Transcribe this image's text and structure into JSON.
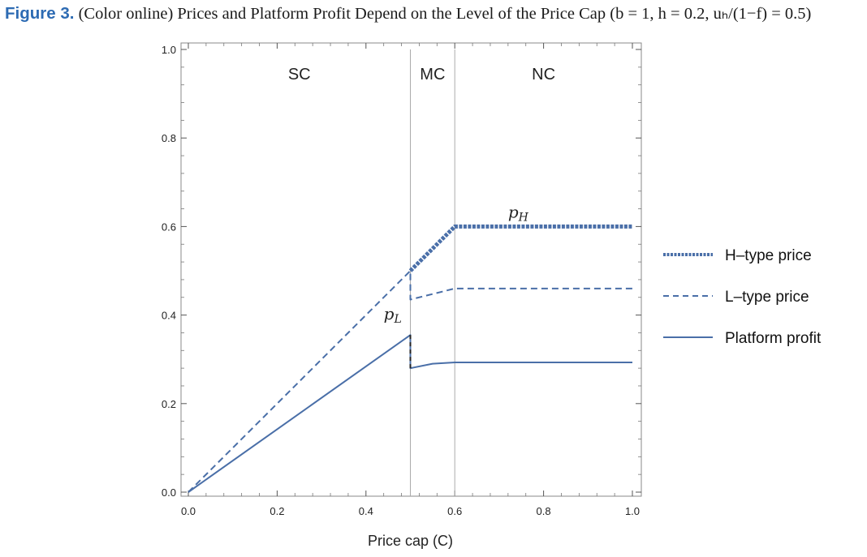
{
  "caption": {
    "figure_label": "Figure 3.",
    "text": "(Color online) Prices and Platform Profit Depend on the Level of the Price Cap",
    "params": "(b = 1, h = 0.2, uₕ/(1−f) = 0.5)"
  },
  "colors": {
    "series": "#4a6fa8",
    "caption_label": "#2d6bb3",
    "frame": "#888888",
    "region_line": "#aaaaaa"
  },
  "chart_data": {
    "type": "line",
    "xlabel": "Price cap (C)",
    "ylabel": "",
    "xlim": [
      0,
      1
    ],
    "ylim": [
      0,
      1
    ],
    "x_ticks": [
      "0.0",
      "0.2",
      "0.4",
      "0.6",
      "0.8",
      "1.0"
    ],
    "y_ticks": [
      "0.0",
      "0.2",
      "0.4",
      "0.6",
      "0.8",
      "1.0"
    ],
    "grid": false,
    "legend_position": "right",
    "regions": [
      {
        "label": "SC",
        "from": 0.0,
        "to": 0.5
      },
      {
        "label": "MC",
        "from": 0.5,
        "to": 0.6
      },
      {
        "label": "NC",
        "from": 0.6,
        "to": 1.0
      }
    ],
    "region_boundaries": [
      0.5,
      0.6
    ],
    "annotations": [
      {
        "text": "p",
        "subscript": "H",
        "x": 0.72,
        "y": 0.62
      },
      {
        "text": "p",
        "subscript": "L",
        "x": 0.44,
        "y": 0.39
      }
    ],
    "series": [
      {
        "name": "H–type price",
        "style": "thick-dotted",
        "points": [
          [
            0.5,
            0.5
          ],
          [
            0.6,
            0.6
          ],
          [
            1.0,
            0.6
          ]
        ]
      },
      {
        "name": "L–type price",
        "style": "dashed",
        "points": [
          [
            0.0,
            0.0
          ],
          [
            0.5,
            0.5
          ],
          [
            0.5,
            0.435
          ],
          [
            0.6,
            0.46
          ],
          [
            1.0,
            0.46
          ]
        ]
      },
      {
        "name": "Platform profit",
        "style": "solid",
        "points": [
          [
            0.0,
            0.0
          ],
          [
            0.5,
            0.355
          ],
          [
            0.5,
            0.28
          ],
          [
            0.55,
            0.29
          ],
          [
            0.6,
            0.293
          ],
          [
            1.0,
            0.293
          ]
        ]
      }
    ],
    "connector": {
      "style": "black-dashed",
      "x": 0.5,
      "y_from": 0.28,
      "y_to": 0.355
    }
  }
}
